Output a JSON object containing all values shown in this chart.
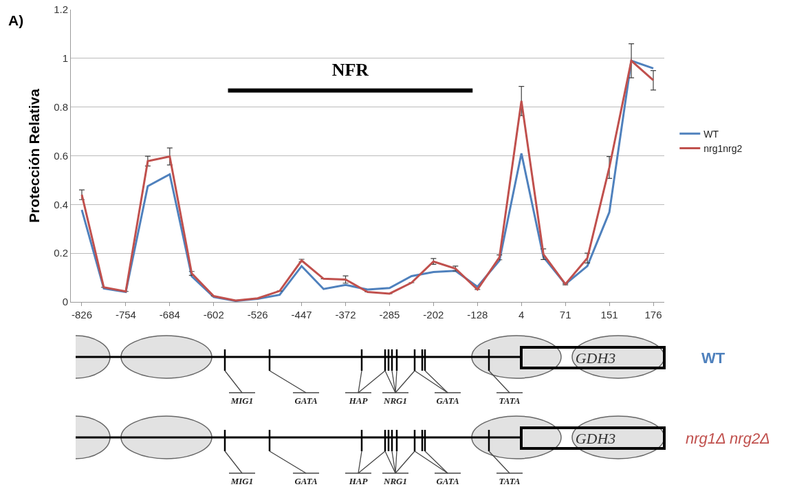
{
  "chart_data": {
    "type": "line",
    "ylabel": "Protección Relativa",
    "categories": [
      "-826",
      null,
      "-754",
      null,
      "-684",
      null,
      "-602",
      null,
      "-526",
      null,
      "-447",
      null,
      "-372",
      null,
      "-285",
      null,
      "-202",
      null,
      "-128",
      null,
      "4",
      null,
      "71",
      null,
      "151",
      null,
      "176"
    ],
    "series": [
      {
        "name": "WT",
        "color": "#4f81bd",
        "values": [
          0.378,
          0.055,
          0.041,
          0.475,
          0.524,
          0.105,
          0.02,
          0.004,
          0.013,
          0.029,
          0.147,
          0.053,
          0.07,
          0.051,
          0.057,
          0.106,
          0.123,
          0.128,
          0.062,
          0.17,
          0.61,
          0.185,
          0.073,
          0.147,
          0.368,
          0.99,
          0.959
        ]
      },
      {
        "name": "nrg1nrg2",
        "color": "#c0504d",
        "values": [
          0.44,
          0.06,
          0.043,
          0.578,
          0.597,
          0.117,
          0.024,
          0.006,
          0.015,
          0.045,
          0.17,
          0.095,
          0.092,
          0.041,
          0.034,
          0.079,
          0.166,
          0.137,
          0.051,
          0.183,
          0.825,
          0.196,
          0.073,
          0.18,
          0.552,
          0.99,
          0.91
        ],
        "errors": [
          0.02,
          null,
          null,
          0.02,
          0.035,
          0.008,
          null,
          null,
          null,
          null,
          0.005,
          null,
          0.015,
          null,
          null,
          null,
          0.012,
          0.01,
          null,
          0.01,
          0.06,
          0.022,
          0.003,
          0.02,
          0.045,
          0.07,
          0.04
        ]
      }
    ],
    "ylim": [
      0,
      1.2
    ],
    "yticks": [
      0,
      0.2,
      0.4,
      0.6,
      0.8,
      1,
      1.2
    ],
    "grid": "y",
    "legend": "right",
    "annotations": [
      "A)",
      "NFR",
      "MIG1",
      "GATA",
      "HAP",
      "NRG1",
      "GATA",
      "TATA",
      "GDH3",
      "WT",
      "nrg1Δ nrg2Δ"
    ]
  }
}
